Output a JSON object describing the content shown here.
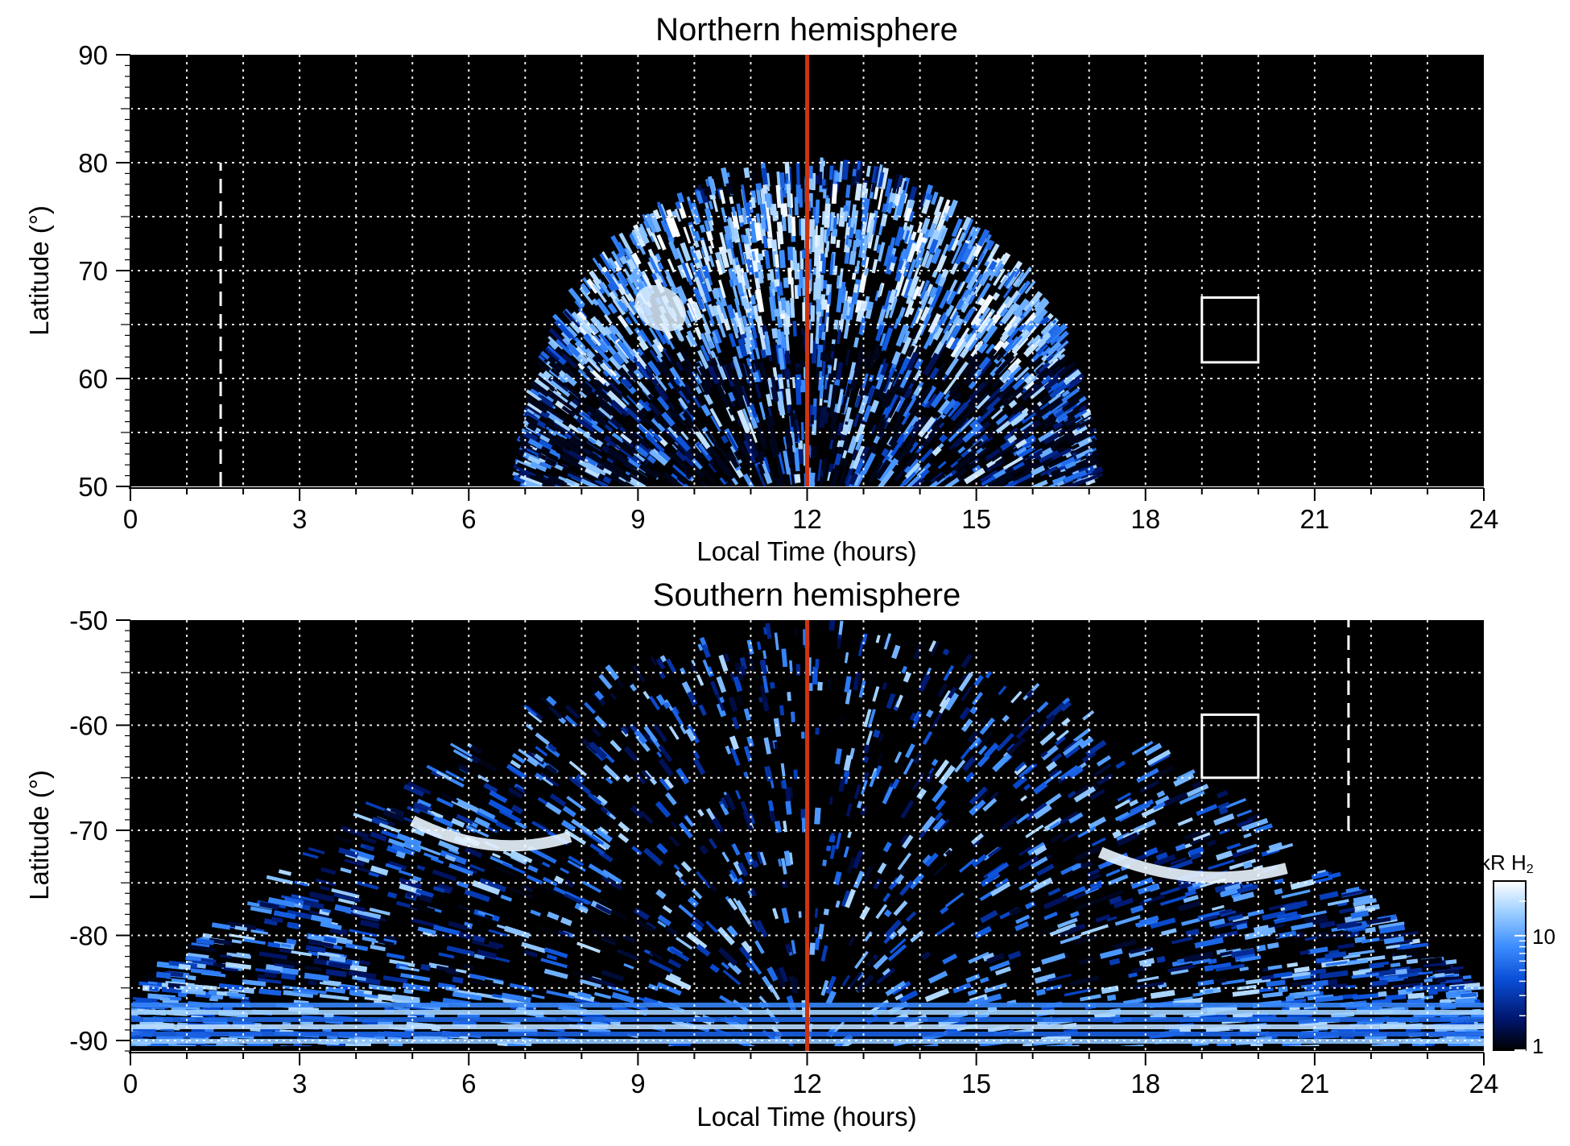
{
  "chart_data": [
    {
      "type": "heatmap",
      "title": "Northern hemisphere",
      "xlabel": "Local Time (hours)",
      "ylabel": "Latitude (°)",
      "xlim": [
        0,
        24
      ],
      "ylim": [
        50,
        90
      ],
      "x_ticks": [
        "0",
        "3",
        "6",
        "9",
        "12",
        "15",
        "18",
        "21",
        "24"
      ],
      "y_ticks": [
        "50",
        "60",
        "70",
        "80",
        "90"
      ],
      "grid": true,
      "colormap": "black-blue-white",
      "emission_region": {
        "lt_start": 7.0,
        "lt_end": 17.1,
        "lat_outer": 50,
        "lat_top": 80
      },
      "bright_oval": {
        "lt_start": 8.5,
        "lt_end": 16.0,
        "lat_low": 67,
        "lat_high": 77
      },
      "hotspot": {
        "lt": 9.4,
        "lat": 66.5,
        "label": ""
      },
      "noon_line": {
        "lt": 12,
        "color": "#cc3311"
      },
      "dashed_marker": {
        "lt": 1.6,
        "lat_range": [
          50,
          80
        ]
      },
      "box": {
        "lt_range": [
          19.0,
          20.0
        ],
        "lat_range": [
          61.5,
          67.5
        ]
      }
    },
    {
      "type": "heatmap",
      "title": "Southern hemisphere",
      "xlabel": "Local Time (hours)",
      "ylabel": "Latitude (°)",
      "xlim": [
        0,
        24
      ],
      "ylim": [
        -91,
        -50
      ],
      "x_ticks": [
        "0",
        "3",
        "6",
        "9",
        "12",
        "15",
        "18",
        "21",
        "24"
      ],
      "y_ticks": [
        "-50",
        "-60",
        "-70",
        "-80",
        "-90"
      ],
      "grid": true,
      "colormap": "black-blue-white",
      "emission_region": {
        "lt_start": 0,
        "lt_end": 24,
        "lat_outer": -90,
        "lat_top": -50
      },
      "bright_arcs": [
        {
          "lt_start": 5.0,
          "lt_end": 7.8,
          "lat": -71
        },
        {
          "lt_start": 17.2,
          "lt_end": 20.5,
          "lat": -74
        }
      ],
      "noon_line": {
        "lt": 12,
        "color": "#cc3311"
      },
      "dashed_marker": {
        "lt": 21.6,
        "lat_range": [
          -70,
          -50
        ]
      },
      "box": {
        "lt_range": [
          19.0,
          20.0
        ],
        "lat_range": [
          -65,
          -59
        ]
      }
    }
  ],
  "colorbar": {
    "label_main": "kR H",
    "label_sub": "2",
    "ticks": [
      "1",
      "10"
    ],
    "range": [
      1,
      30
    ],
    "scale": "log",
    "colors": [
      "#000000",
      "#00156b",
      "#0a4fd8",
      "#3e8fff",
      "#9fd0ff",
      "#ffffff"
    ]
  }
}
